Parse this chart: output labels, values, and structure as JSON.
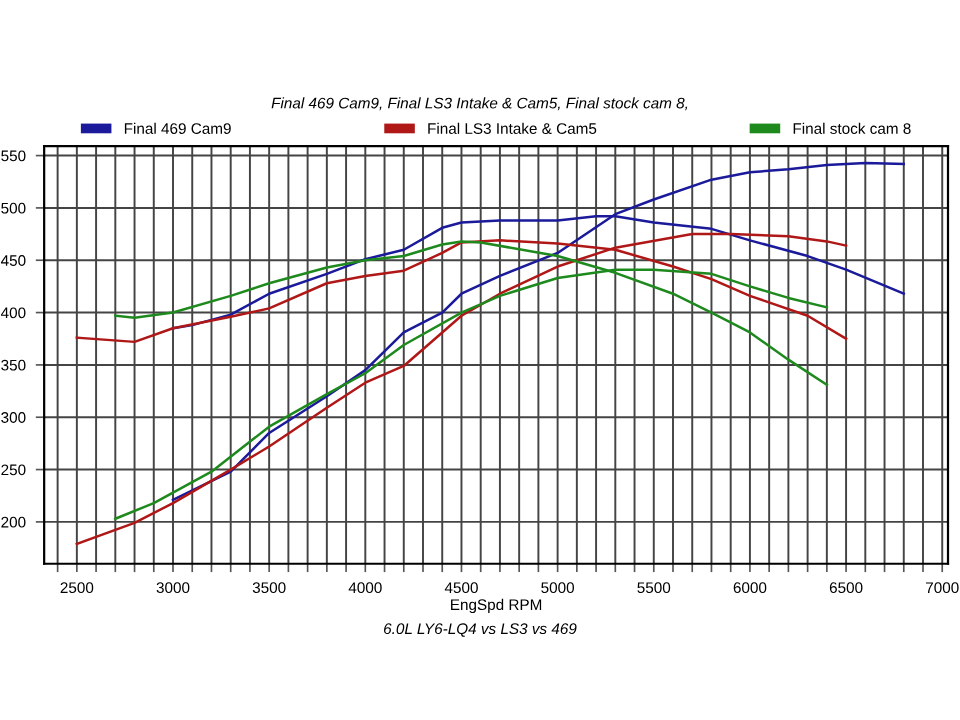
{
  "chart_data": {
    "type": "line",
    "title": "Final 469 Cam9, Final LS3 Intake & Cam5, Final stock cam 8,",
    "xlabel": "EngSpd RPM",
    "annotations": [
      "6.0L LY6-LQ4 vs LS3 vs 469"
    ],
    "xlim": [
      2330,
      7030
    ],
    "ylim": [
      160,
      559
    ],
    "xticks": [
      {
        "value": 2400,
        "label": null
      },
      2500,
      {
        "value": 2600,
        "label": null
      },
      {
        "value": 2700,
        "label": null
      },
      {
        "value": 2800,
        "label": null
      },
      {
        "value": 2900,
        "label": null
      },
      3000,
      {
        "value": 3100,
        "label": null
      },
      {
        "value": 3200,
        "label": null
      },
      {
        "value": 3300,
        "label": null
      },
      {
        "value": 3400,
        "label": null
      },
      3500,
      {
        "value": 3600,
        "label": null
      },
      {
        "value": 3700,
        "label": null
      },
      {
        "value": 3800,
        "label": null
      },
      {
        "value": 3900,
        "label": null
      },
      4000,
      {
        "value": 4100,
        "label": null
      },
      {
        "value": 4200,
        "label": null
      },
      {
        "value": 4300,
        "label": null
      },
      {
        "value": 4400,
        "label": null
      },
      4500,
      {
        "value": 4600,
        "label": null
      },
      {
        "value": 4700,
        "label": null
      },
      {
        "value": 4800,
        "label": null
      },
      {
        "value": 4900,
        "label": null
      },
      5000,
      {
        "value": 5100,
        "label": null
      },
      {
        "value": 5200,
        "label": null
      },
      {
        "value": 5300,
        "label": null
      },
      {
        "value": 5400,
        "label": null
      },
      5500,
      {
        "value": 5600,
        "label": null
      },
      {
        "value": 5700,
        "label": null
      },
      {
        "value": 5800,
        "label": null
      },
      {
        "value": 5900,
        "label": null
      },
      6000,
      {
        "value": 6100,
        "label": null
      },
      {
        "value": 6200,
        "label": null
      },
      {
        "value": 6300,
        "label": null
      },
      {
        "value": 6400,
        "label": null
      },
      6500,
      {
        "value": 6600,
        "label": null
      },
      {
        "value": 6700,
        "label": null
      },
      {
        "value": 6800,
        "label": null
      },
      {
        "value": 6900,
        "label": null
      },
      7000
    ],
    "yticks": [
      200,
      250,
      300,
      350,
      400,
      450,
      500,
      550
    ],
    "grid": true,
    "legend": "top",
    "marker": "none",
    "line_style": "solid",
    "series": [
      {
        "name": "Final 469 Cam9",
        "color": "#1a1a9a",
        "x": [
          3000,
          3100,
          3300,
          3500,
          3800,
          4000,
          4200,
          4400,
          4500,
          4700,
          4800,
          5000,
          5200,
          5300,
          5500,
          5800,
          6000,
          6300,
          6500,
          6800
        ],
        "values": [
          385,
          388,
          398,
          418,
          437,
          451,
          460,
          481,
          486,
          488,
          488,
          488,
          492,
          492,
          486,
          480,
          469,
          454,
          441,
          418
        ]
      },
      {
        "color": "#1a1a9a",
        "x": [
          3000,
          3300,
          3500,
          3800,
          4000,
          4200,
          4400,
          4500,
          4700,
          5000,
          5300,
          5500,
          5800,
          6000,
          6200,
          6400,
          6600,
          6800
        ],
        "values": [
          221,
          248,
          285,
          320,
          345,
          381,
          400,
          418,
          435,
          457,
          494,
          508,
          527,
          534,
          537,
          541,
          543,
          542
        ]
      },
      {
        "name": "Final LS3 Intake & Cam5",
        "color": "#b01818",
        "x": [
          2500,
          2800,
          3000,
          3300,
          3500,
          3800,
          4000,
          4200,
          4400,
          4500,
          4700,
          5000,
          5300,
          5600,
          5800,
          6000,
          6300,
          6500
        ],
        "values": [
          376,
          372,
          385,
          396,
          404,
          428,
          435,
          440,
          457,
          467,
          469,
          466,
          460,
          444,
          432,
          416,
          397,
          375
        ]
      },
      {
        "color": "#b01818",
        "x": [
          2500,
          2800,
          3000,
          3300,
          3500,
          3800,
          4000,
          4200,
          4400,
          4500,
          4700,
          5000,
          5300,
          5700,
          5900,
          6200,
          6400,
          6500
        ],
        "values": [
          179,
          199,
          218,
          250,
          272,
          309,
          333,
          349,
          381,
          397,
          418,
          444,
          462,
          475,
          475,
          473,
          468,
          464
        ]
      },
      {
        "name": "Final stock cam 8",
        "color": "#1e8a1e",
        "x": [
          2700,
          2800,
          3000,
          3300,
          3500,
          3800,
          4000,
          4200,
          4400,
          4500,
          4600,
          5000,
          5300,
          5600,
          5800,
          6000,
          6200,
          6400
        ],
        "values": [
          397,
          395,
          400,
          416,
          428,
          443,
          450,
          454,
          465,
          468,
          467,
          454,
          438,
          418,
          400,
          381,
          355,
          331
        ]
      },
      {
        "color": "#1e8a1e",
        "x": [
          2700,
          2900,
          3200,
          3500,
          3800,
          4000,
          4200,
          4500,
          4700,
          5000,
          5300,
          5500,
          5800,
          6000,
          6200,
          6400
        ],
        "values": [
          203,
          218,
          248,
          291,
          322,
          342,
          369,
          400,
          416,
          433,
          441,
          441,
          437,
          425,
          414,
          405
        ]
      }
    ]
  }
}
